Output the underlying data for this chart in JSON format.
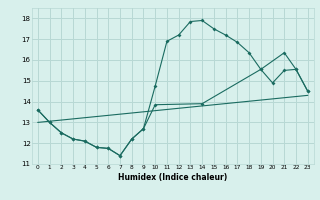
{
  "xlabel": "Humidex (Indice chaleur)",
  "xlim": [
    -0.5,
    23.5
  ],
  "ylim": [
    11,
    18.5
  ],
  "yticks": [
    11,
    12,
    13,
    14,
    15,
    16,
    17,
    18
  ],
  "xticks": [
    0,
    1,
    2,
    3,
    4,
    5,
    6,
    7,
    8,
    9,
    10,
    11,
    12,
    13,
    14,
    15,
    16,
    17,
    18,
    19,
    20,
    21,
    22,
    23
  ],
  "bg_color": "#d8f0ec",
  "grid_color": "#b8d8d4",
  "line_color": "#1a6b60",
  "line1_x": [
    0,
    1,
    2,
    3,
    4,
    5,
    6,
    7,
    8,
    9,
    10,
    11,
    12,
    13,
    14,
    15,
    16,
    17,
    18,
    19,
    20,
    21,
    22,
    23
  ],
  "line1_y": [
    13.6,
    13.0,
    12.5,
    12.2,
    12.1,
    11.8,
    11.75,
    11.4,
    12.2,
    12.7,
    14.75,
    16.9,
    17.2,
    17.85,
    17.9,
    17.5,
    17.2,
    16.85,
    16.35,
    15.55,
    14.9,
    15.5,
    15.55,
    14.5
  ],
  "line2_x": [
    0,
    1,
    2,
    3,
    4,
    5,
    6,
    7,
    8,
    9,
    10,
    14,
    19,
    21,
    22,
    23
  ],
  "line2_y": [
    13.6,
    13.0,
    12.5,
    12.2,
    12.1,
    11.8,
    11.75,
    11.4,
    12.2,
    12.7,
    13.85,
    13.9,
    15.55,
    16.35,
    15.55,
    14.5
  ],
  "line3_x": [
    0,
    23
  ],
  "line3_y": [
    13.0,
    14.3
  ]
}
